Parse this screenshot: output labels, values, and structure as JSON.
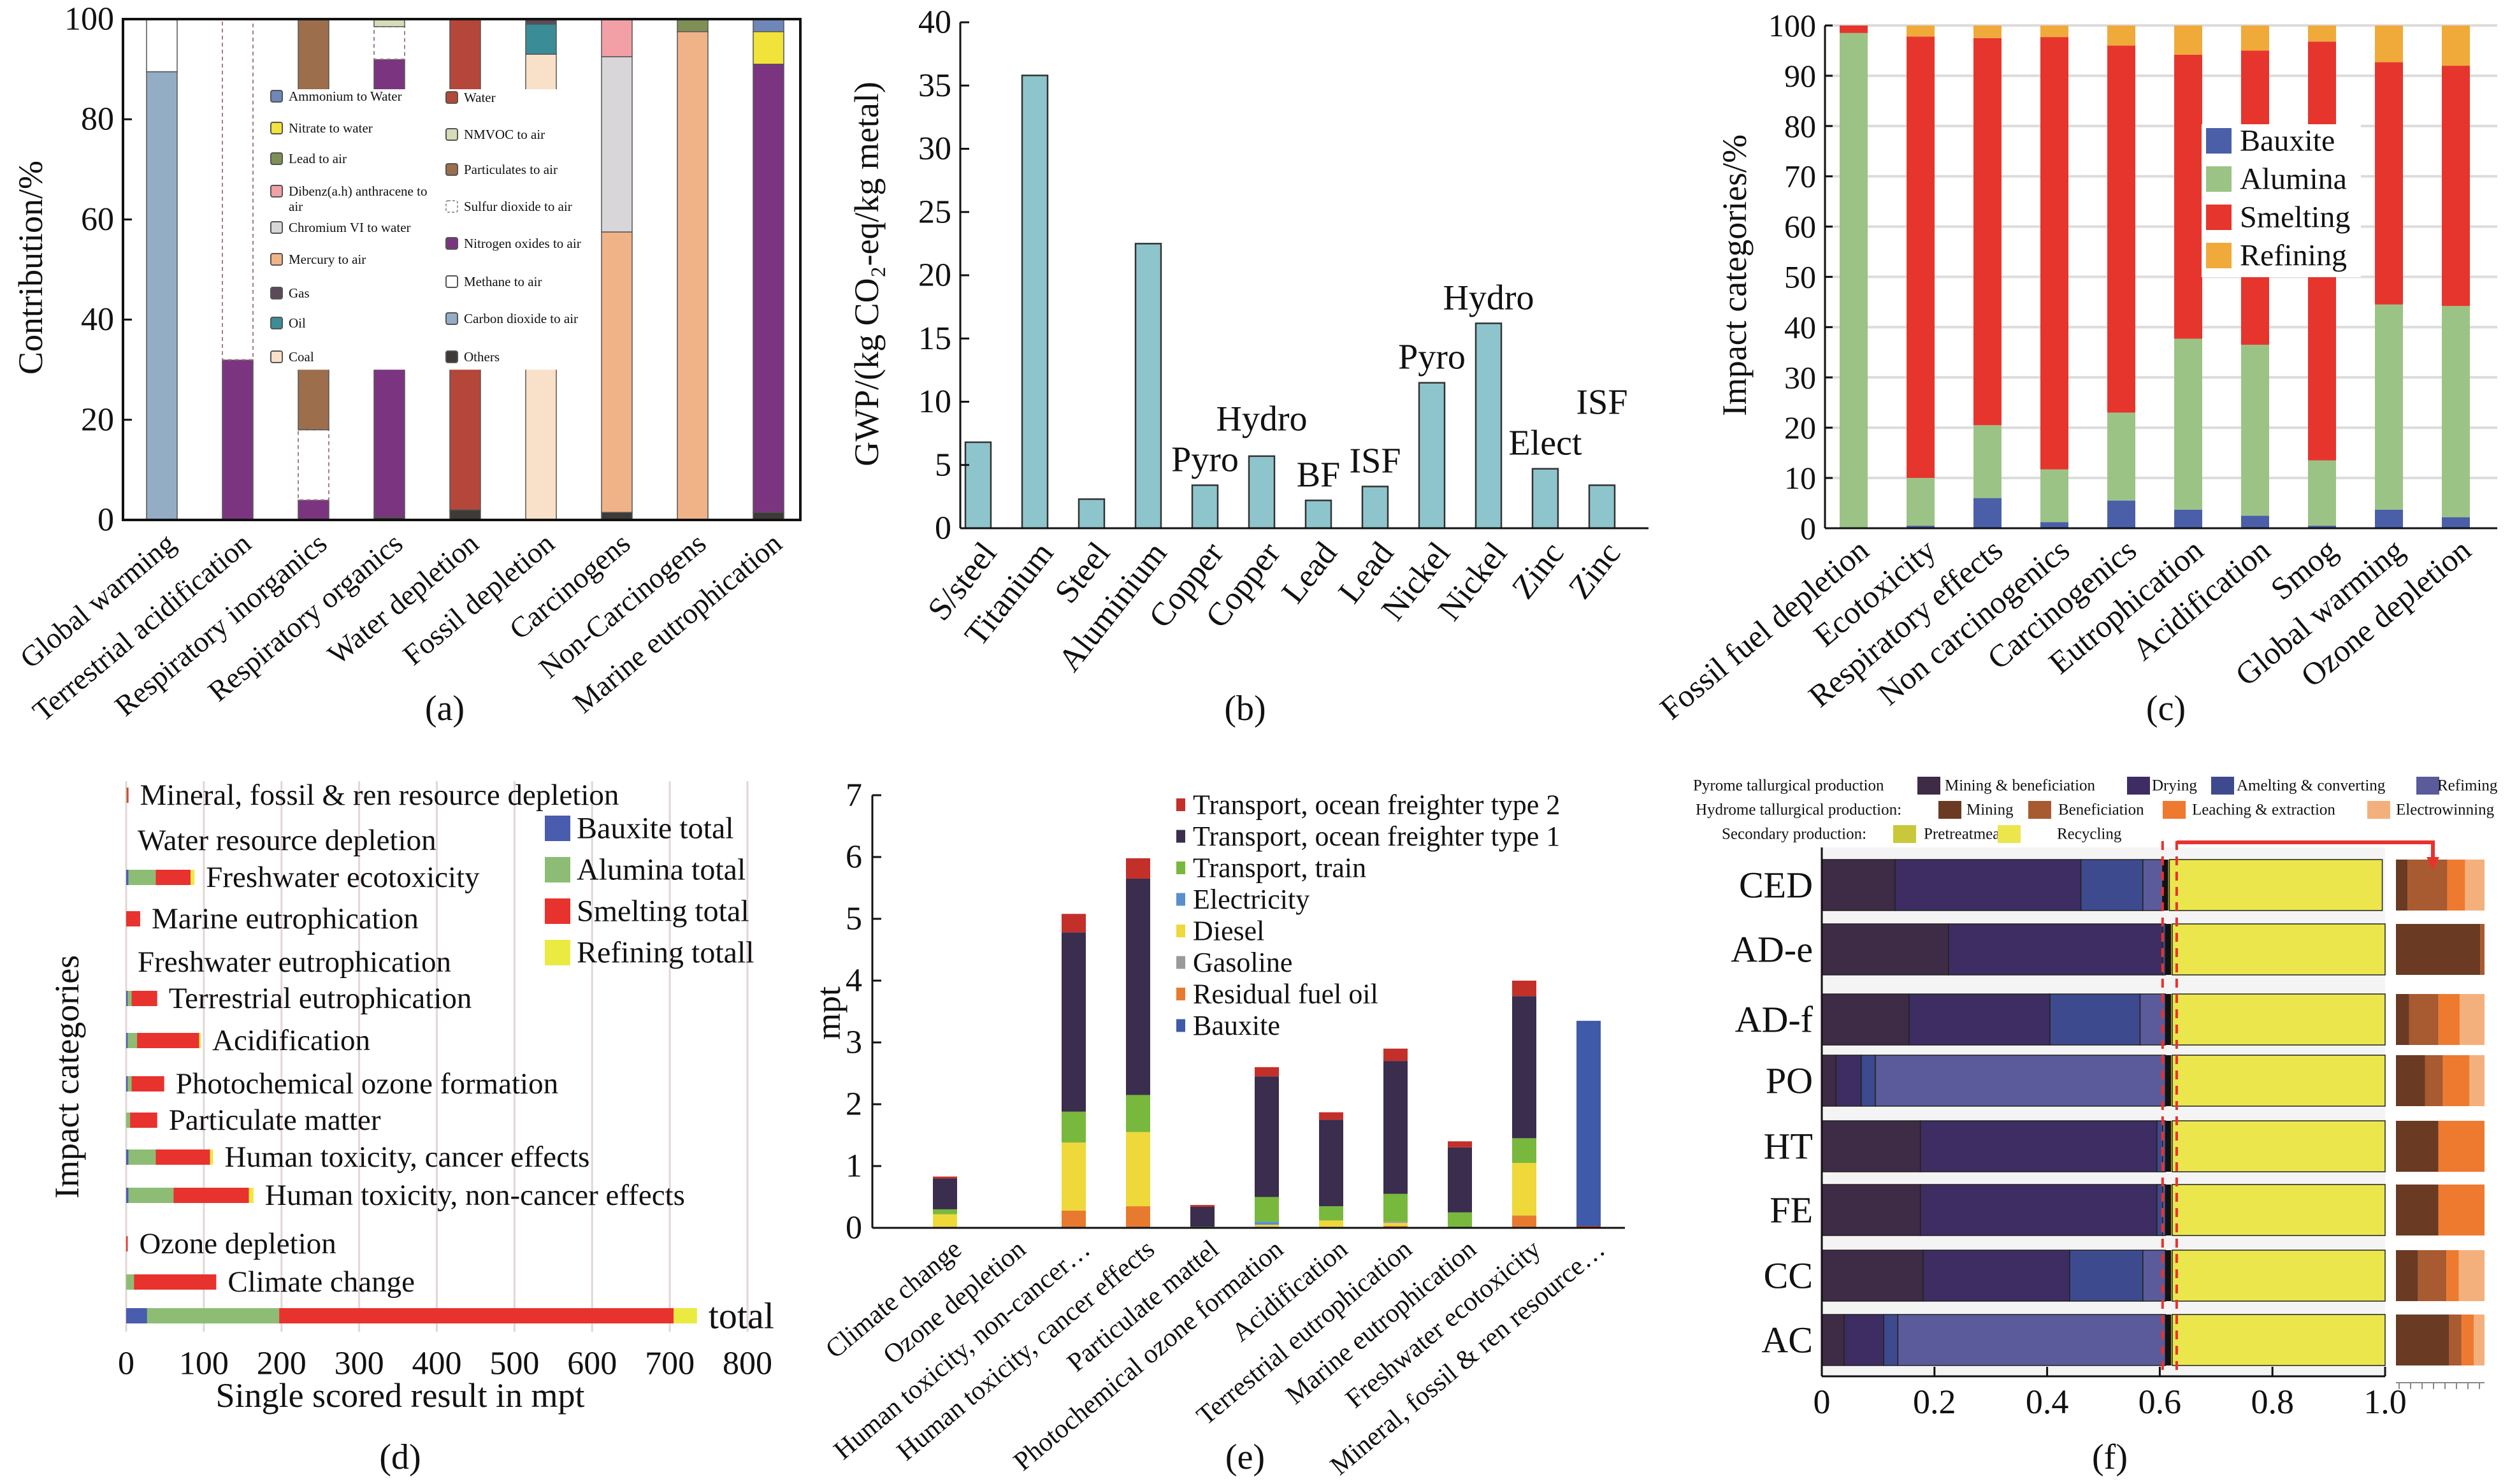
{
  "panel_labels": [
    "(a)",
    "(b)",
    "(c)",
    "(d)",
    "(e)",
    "(f)"
  ],
  "chart_data": [
    {
      "type": "bar",
      "stacked": true,
      "ylabel": "Contribution/%",
      "ylim": [
        0,
        100
      ],
      "yticks": [
        0,
        20,
        40,
        60,
        80,
        100
      ],
      "legend_position": "center",
      "categories": [
        "Global warming",
        "Terrestrial acidification",
        "Respiratory inorganics",
        "Respiratory organics",
        "Water depletion",
        "Fossil depletion",
        "Carcinogens",
        "Non-Carcinogens",
        "Marine eutrophication"
      ],
      "series": [
        {
          "name": "Ammonium to Water",
          "color": "#6f87b8",
          "values": [
            0,
            0,
            0,
            0,
            0,
            0,
            0,
            0,
            2.5
          ]
        },
        {
          "name": "Nitrate to water",
          "color": "#f1e33a",
          "values": [
            0,
            0,
            0,
            0,
            0,
            0,
            0,
            0,
            6.5
          ]
        },
        {
          "name": "Lead to air",
          "color": "#7f8f56",
          "values": [
            0,
            0,
            0,
            0,
            0,
            0,
            0,
            2.5,
            0
          ]
        },
        {
          "name": "Dibenz(a.h) anthracene to air",
          "color": "#f2a0a5",
          "values": [
            0,
            0,
            0,
            0,
            0,
            0,
            7.5,
            0,
            0
          ]
        },
        {
          "name": "Chromium VI to water",
          "color": "#d8d6d8",
          "values": [
            0,
            0,
            0,
            0,
            0,
            0,
            35,
            0,
            0
          ]
        },
        {
          "name": "Mercury to air",
          "color": "#f0b388",
          "values": [
            0,
            0,
            0,
            0,
            0,
            0,
            56,
            97.5,
            0
          ]
        },
        {
          "name": "Gas",
          "color": "#5a4a5a",
          "values": [
            0,
            0,
            0,
            0,
            0,
            1,
            0,
            0,
            0
          ]
        },
        {
          "name": "Oil",
          "color": "#3a8c96",
          "values": [
            0,
            0,
            0,
            0,
            0,
            6,
            0,
            0,
            0
          ]
        },
        {
          "name": "Coal",
          "color": "#f9e0c8",
          "values": [
            0,
            0,
            0,
            0,
            0,
            93,
            0,
            0,
            0
          ]
        },
        {
          "name": "Water",
          "color": "#b5463a",
          "values": [
            0,
            0,
            0,
            0,
            98,
            0,
            0,
            0,
            0
          ]
        },
        {
          "name": "NMVOC to air",
          "color": "#d5dcb7",
          "values": [
            0,
            0,
            0,
            1.5,
            0,
            0,
            0,
            0,
            0
          ]
        },
        {
          "name": "Particulates to air",
          "color": "#9c6e4c",
          "values": [
            0,
            0,
            82,
            0,
            0,
            0,
            0,
            0,
            0
          ]
        },
        {
          "name": "Sulfur dioxide to air",
          "color": "#ffffff",
          "values": [
            0,
            68,
            14,
            6.5,
            0,
            0,
            0,
            0,
            0
          ]
        },
        {
          "name": "Nitrogen oxides to air",
          "color": "#7b3580",
          "values": [
            0,
            32,
            4,
            91.5,
            0,
            0,
            0,
            0,
            89.5
          ]
        },
        {
          "name": "Methane to air",
          "color": "#ffffff",
          "values": [
            10.5,
            0,
            0,
            0,
            0,
            0,
            0,
            0,
            0
          ]
        },
        {
          "name": "Carbon dioxide to air",
          "color": "#93adc4",
          "values": [
            89.5,
            0,
            0,
            0,
            0,
            0,
            0,
            0,
            0
          ]
        },
        {
          "name": "Others",
          "color": "#3d3a38",
          "values": [
            0,
            0,
            0,
            0.5,
            2,
            0,
            1.5,
            0,
            1.5
          ]
        }
      ]
    },
    {
      "type": "bar",
      "ylabel": "GWP/(kg CO₂-eq/kg metal)",
      "ylim": [
        0,
        40
      ],
      "yticks": [
        0,
        5,
        10,
        15,
        20,
        25,
        30,
        35,
        40
      ],
      "color": "#8ec5cc",
      "categories": [
        "S/steel",
        "Titanium",
        "Steel",
        "Aluminium",
        "Copper",
        "Copper",
        "Lead",
        "Lead",
        "Nickel",
        "Nickel",
        "Zinc",
        "Zinc"
      ],
      "values": [
        6.8,
        35.8,
        2.3,
        22.5,
        3.4,
        5.7,
        2.2,
        3.3,
        11.5,
        16.2,
        4.7,
        3.4
      ],
      "annotations": [
        "",
        "",
        "",
        "",
        "Pyro",
        "Hydro",
        "BF",
        "ISF",
        "Pyro",
        "Hydro",
        "Elect",
        "ISF"
      ]
    },
    {
      "type": "bar",
      "stacked": true,
      "ylabel": "Impact categories/%",
      "ylim": [
        0,
        100
      ],
      "yticks": [
        0,
        10,
        20,
        30,
        40,
        50,
        60,
        70,
        80,
        90,
        100
      ],
      "grid": true,
      "legend_position": "center-right",
      "categories": [
        "Fossil fuel depletion",
        "Ecotoxicity",
        "Respiratory effects",
        "Non carcinogenics",
        "Carcinogenics",
        "Eutrophication",
        "Acidification",
        "Smog",
        "Global warming",
        "Ozone depletion"
      ],
      "series": [
        {
          "name": "Bauxite",
          "color": "#4b5fa8",
          "values": [
            0,
            0.5,
            6,
            1.2,
            5.5,
            3.7,
            2.5,
            0.5,
            3.7,
            2.2
          ]
        },
        {
          "name": "Alumina",
          "color": "#9cc386",
          "values": [
            98.5,
            9.5,
            14.5,
            10.5,
            17.5,
            34,
            34,
            13,
            40.8,
            42
          ]
        },
        {
          "name": "Smelting",
          "color": "#e6352d",
          "values": [
            1.5,
            87.8,
            77,
            86,
            73,
            56.5,
            58.5,
            83.3,
            48.2,
            47.8
          ]
        },
        {
          "name": "Refining",
          "color": "#f0aa3a",
          "values": [
            0,
            2.2,
            2.5,
            2.3,
            4,
            5.8,
            5,
            3.2,
            7.3,
            8
          ]
        }
      ]
    },
    {
      "type": "bar",
      "orientation": "horizontal",
      "stacked": true,
      "xlabel": "Single scored result in mpt",
      "ylabel": "Impact categories",
      "xlim": [
        0,
        800
      ],
      "xticks": [
        0,
        100,
        200,
        300,
        400,
        500,
        600,
        700,
        800
      ],
      "grid": true,
      "legend_position": "top-right",
      "categories": [
        "Mineral, fossil & ren resource depletion",
        "Water resource depletion",
        "Freshwater ecotoxicity",
        "Marine eutrophication",
        "Freshwater eutrophication",
        "Terrestrial eutrophication",
        "Acidification",
        "Photochemical ozone formation",
        "Particulate matter",
        "Human toxicity, cancer effects",
        "Human toxicity, non-cancer effects",
        "Ozone depletion",
        "Climate change",
        "total"
      ],
      "series": [
        {
          "name": "Bauxite total",
          "color": "#4a5cad",
          "values": [
            0,
            0,
            3,
            0,
            0,
            2,
            2,
            2,
            0,
            3,
            3,
            0,
            0,
            27
          ]
        },
        {
          "name": "Alumina total",
          "color": "#8dbd74",
          "values": [
            1,
            0,
            35,
            0,
            0,
            5,
            12,
            5,
            5,
            35,
            58,
            0,
            10,
            170
          ]
        },
        {
          "name": "Smelting total",
          "color": "#e8322e",
          "values": [
            2,
            0,
            45,
            18,
            0,
            33,
            80,
            42,
            35,
            70,
            97,
            2,
            106,
            508
          ]
        },
        {
          "name": "Refining totall",
          "color": "#eaea40",
          "values": [
            0,
            0,
            5,
            0,
            0,
            0,
            2,
            0,
            0,
            4,
            6,
            0,
            0,
            30
          ]
        }
      ]
    },
    {
      "type": "bar",
      "stacked": true,
      "ylabel": "mpt",
      "ylim": [
        0,
        7
      ],
      "yticks": [
        0,
        1,
        2,
        3,
        4,
        5,
        6,
        7
      ],
      "legend_position": "top-right",
      "categories": [
        "Climate change",
        "Ozone depletion",
        "Human toxicity, non-cancer…",
        "Human toxicity, cancer effects",
        "Particulate mattel",
        "Photochemical ozone formation",
        "Acidification",
        "Terrestrial eutrophication",
        "Marine eutrophication",
        "Freshwater ecotoxicity",
        "Mineral, fossil & ren resource…"
      ],
      "series": [
        {
          "name": "Transport, ocean freighter type 2",
          "color": "#c3302a",
          "values": [
            0.03,
            0,
            0.3,
            0.33,
            0.03,
            0.15,
            0.12,
            0.2,
            0.1,
            0.25,
            0.03
          ]
        },
        {
          "name": "Transport, ocean freighter type 1",
          "color": "#3a2d4d",
          "values": [
            0.5,
            0,
            2.9,
            3.5,
            0.32,
            1.95,
            1.4,
            2.15,
            1.05,
            2.3,
            0
          ]
        },
        {
          "name": "Transport, train",
          "color": "#78b83d",
          "values": [
            0.08,
            0,
            0.5,
            0.6,
            0.02,
            0.4,
            0.23,
            0.45,
            0.25,
            0.4,
            0
          ]
        },
        {
          "name": "Electricity",
          "color": "#5a8fcc",
          "values": [
            0,
            0,
            0,
            0,
            0,
            0.05,
            0,
            0,
            0,
            0,
            0
          ]
        },
        {
          "name": "Diesel",
          "color": "#efd83a",
          "values": [
            0.22,
            0,
            1.1,
            1.2,
            0,
            0.05,
            0.12,
            0.05,
            0,
            0.85,
            0
          ]
        },
        {
          "name": "Gasoline",
          "color": "#9a9a9a",
          "values": [
            0,
            0,
            0,
            0,
            0,
            0,
            0,
            0.02,
            0,
            0,
            0
          ]
        },
        {
          "name": "Residual fuel oil",
          "color": "#e87a30",
          "values": [
            0,
            0,
            0.28,
            0.35,
            0,
            0,
            0,
            0.03,
            0,
            0.2,
            0
          ]
        },
        {
          "name": "Bauxite",
          "color": "#3f5aa8",
          "values": [
            0,
            0,
            0,
            0,
            0,
            0,
            0,
            0,
            0,
            0,
            3.32
          ]
        }
      ]
    },
    {
      "type": "bar",
      "orientation": "horizontal",
      "stacked": true,
      "xlim": [
        0,
        1.0
      ],
      "xticks": [
        "0",
        "0.2",
        "0.4",
        "0.6",
        "0.8",
        "1.0"
      ],
      "categories": [
        "CED",
        "AD-e",
        "AD-f",
        "PO",
        "HT",
        "FE",
        "CC",
        "AC"
      ],
      "legend": [
        {
          "group": "Pyrome tallurgical production",
          "items": [
            {
              "name": "Mining & beneficiation",
              "color": "#3e2b45"
            },
            {
              "name": "Drying",
              "color": "#3d2d62"
            },
            {
              "name": "Amelting & converting",
              "color": "#3d4a8e"
            },
            {
              "name": "Refiming",
              "color": "#5b5a9a"
            }
          ]
        },
        {
          "group": "Hydrome tallurgical production:",
          "items": [
            {
              "name": "Mining",
              "color": "#6a3a22"
            },
            {
              "name": "Beneficiation",
              "color": "#a85a30"
            },
            {
              "name": "Leaching & extraction",
              "color": "#ee7a30"
            },
            {
              "name": "Electrowinning",
              "color": "#f4b07c"
            }
          ]
        },
        {
          "group": "Secondary production:",
          "items": [
            {
              "name": "Pretreatmeat",
              "color": "#c8c83a"
            },
            {
              "name": "Recycling",
              "color": "#ebe64c"
            }
          ]
        }
      ],
      "pyrometallurgical": [
        [
          0.13,
          0.33,
          0.11,
          0.035
        ],
        [
          0.225,
          0.38,
          0.005,
          0.0
        ],
        [
          0.155,
          0.25,
          0.16,
          0.045
        ],
        [
          0.025,
          0.045,
          0.025,
          0.515
        ],
        [
          0.175,
          0.42,
          0.01,
          0.005
        ],
        [
          0.175,
          0.42,
          0.01,
          0.005
        ],
        [
          0.18,
          0.26,
          0.13,
          0.04
        ],
        [
          0.04,
          0.07,
          0.025,
          0.475
        ]
      ],
      "hydrometallurgical_total": [
        0.01,
        0.01,
        0.01,
        0.01,
        0.01,
        0.01,
        0.01,
        0.01
      ],
      "pretreatment": [
        0.002,
        0.002,
        0.002,
        0.002,
        0.002,
        0.002,
        0.002,
        0.002
      ],
      "recycling": [
        0.378,
        0.378,
        0.378,
        0.378,
        0.378,
        0.378,
        0.378,
        0.378
      ],
      "hydrometallurgical_breakdown": [
        [
          0.13,
          0.45,
          0.2,
          0.22
        ],
        [
          0.95,
          0.05,
          0,
          0
        ],
        [
          0.15,
          0.33,
          0.24,
          0.28
        ],
        [
          0.33,
          0.2,
          0.3,
          0.17
        ],
        [
          0.48,
          0,
          0.52,
          0
        ],
        [
          0.48,
          0,
          0.52,
          0
        ],
        [
          0.25,
          0.32,
          0.14,
          0.29
        ],
        [
          0.6,
          0.14,
          0.14,
          0.12
        ]
      ],
      "highlight_color": "#e8322e"
    }
  ]
}
